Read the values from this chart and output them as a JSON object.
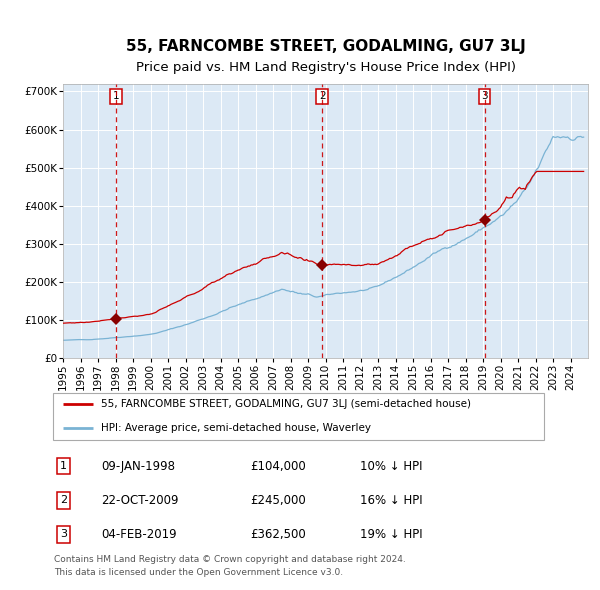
{
  "title": "55, FARNCOMBE STREET, GODALMING, GU7 3LJ",
  "subtitle": "Price paid vs. HM Land Registry's House Price Index (HPI)",
  "legend_line1": "55, FARNCOMBE STREET, GODALMING, GU7 3LJ (semi-detached house)",
  "legend_line2": "HPI: Average price, semi-detached house, Waverley",
  "footnote1": "Contains HM Land Registry data © Crown copyright and database right 2024.",
  "footnote2": "This data is licensed under the Open Government Licence v3.0.",
  "transactions": [
    {
      "num": 1,
      "date": "09-JAN-1998",
      "price": 104000,
      "pct": "10%",
      "dir": "↓"
    },
    {
      "num": 2,
      "date": "22-OCT-2009",
      "price": 245000,
      "pct": "16%",
      "dir": "↓"
    },
    {
      "num": 3,
      "date": "04-FEB-2019",
      "price": 362500,
      "pct": "19%",
      "dir": "↓"
    }
  ],
  "transaction_dates_decimal": [
    1998.03,
    2009.81,
    2019.09
  ],
  "transaction_prices": [
    104000,
    245000,
    362500
  ],
  "hpi_color": "#7ab3d4",
  "price_color": "#cc0000",
  "marker_color": "#880000",
  "dashed_color": "#cc0000",
  "plot_bg": "#dce9f5",
  "ylim": [
    0,
    720000
  ],
  "yticks": [
    0,
    100000,
    200000,
    300000,
    400000,
    500000,
    600000,
    700000
  ],
  "xstart": 1995.0,
  "xend": 2025.0,
  "xticks": [
    1995,
    1996,
    1997,
    1998,
    1999,
    2000,
    2001,
    2002,
    2003,
    2004,
    2005,
    2006,
    2007,
    2008,
    2009,
    2010,
    2011,
    2012,
    2013,
    2014,
    2015,
    2016,
    2017,
    2018,
    2019,
    2020,
    2021,
    2022,
    2023,
    2024
  ],
  "grid_color": "#ffffff",
  "title_fontsize": 11,
  "subtitle_fontsize": 9.5,
  "tick_fontsize": 7.5
}
